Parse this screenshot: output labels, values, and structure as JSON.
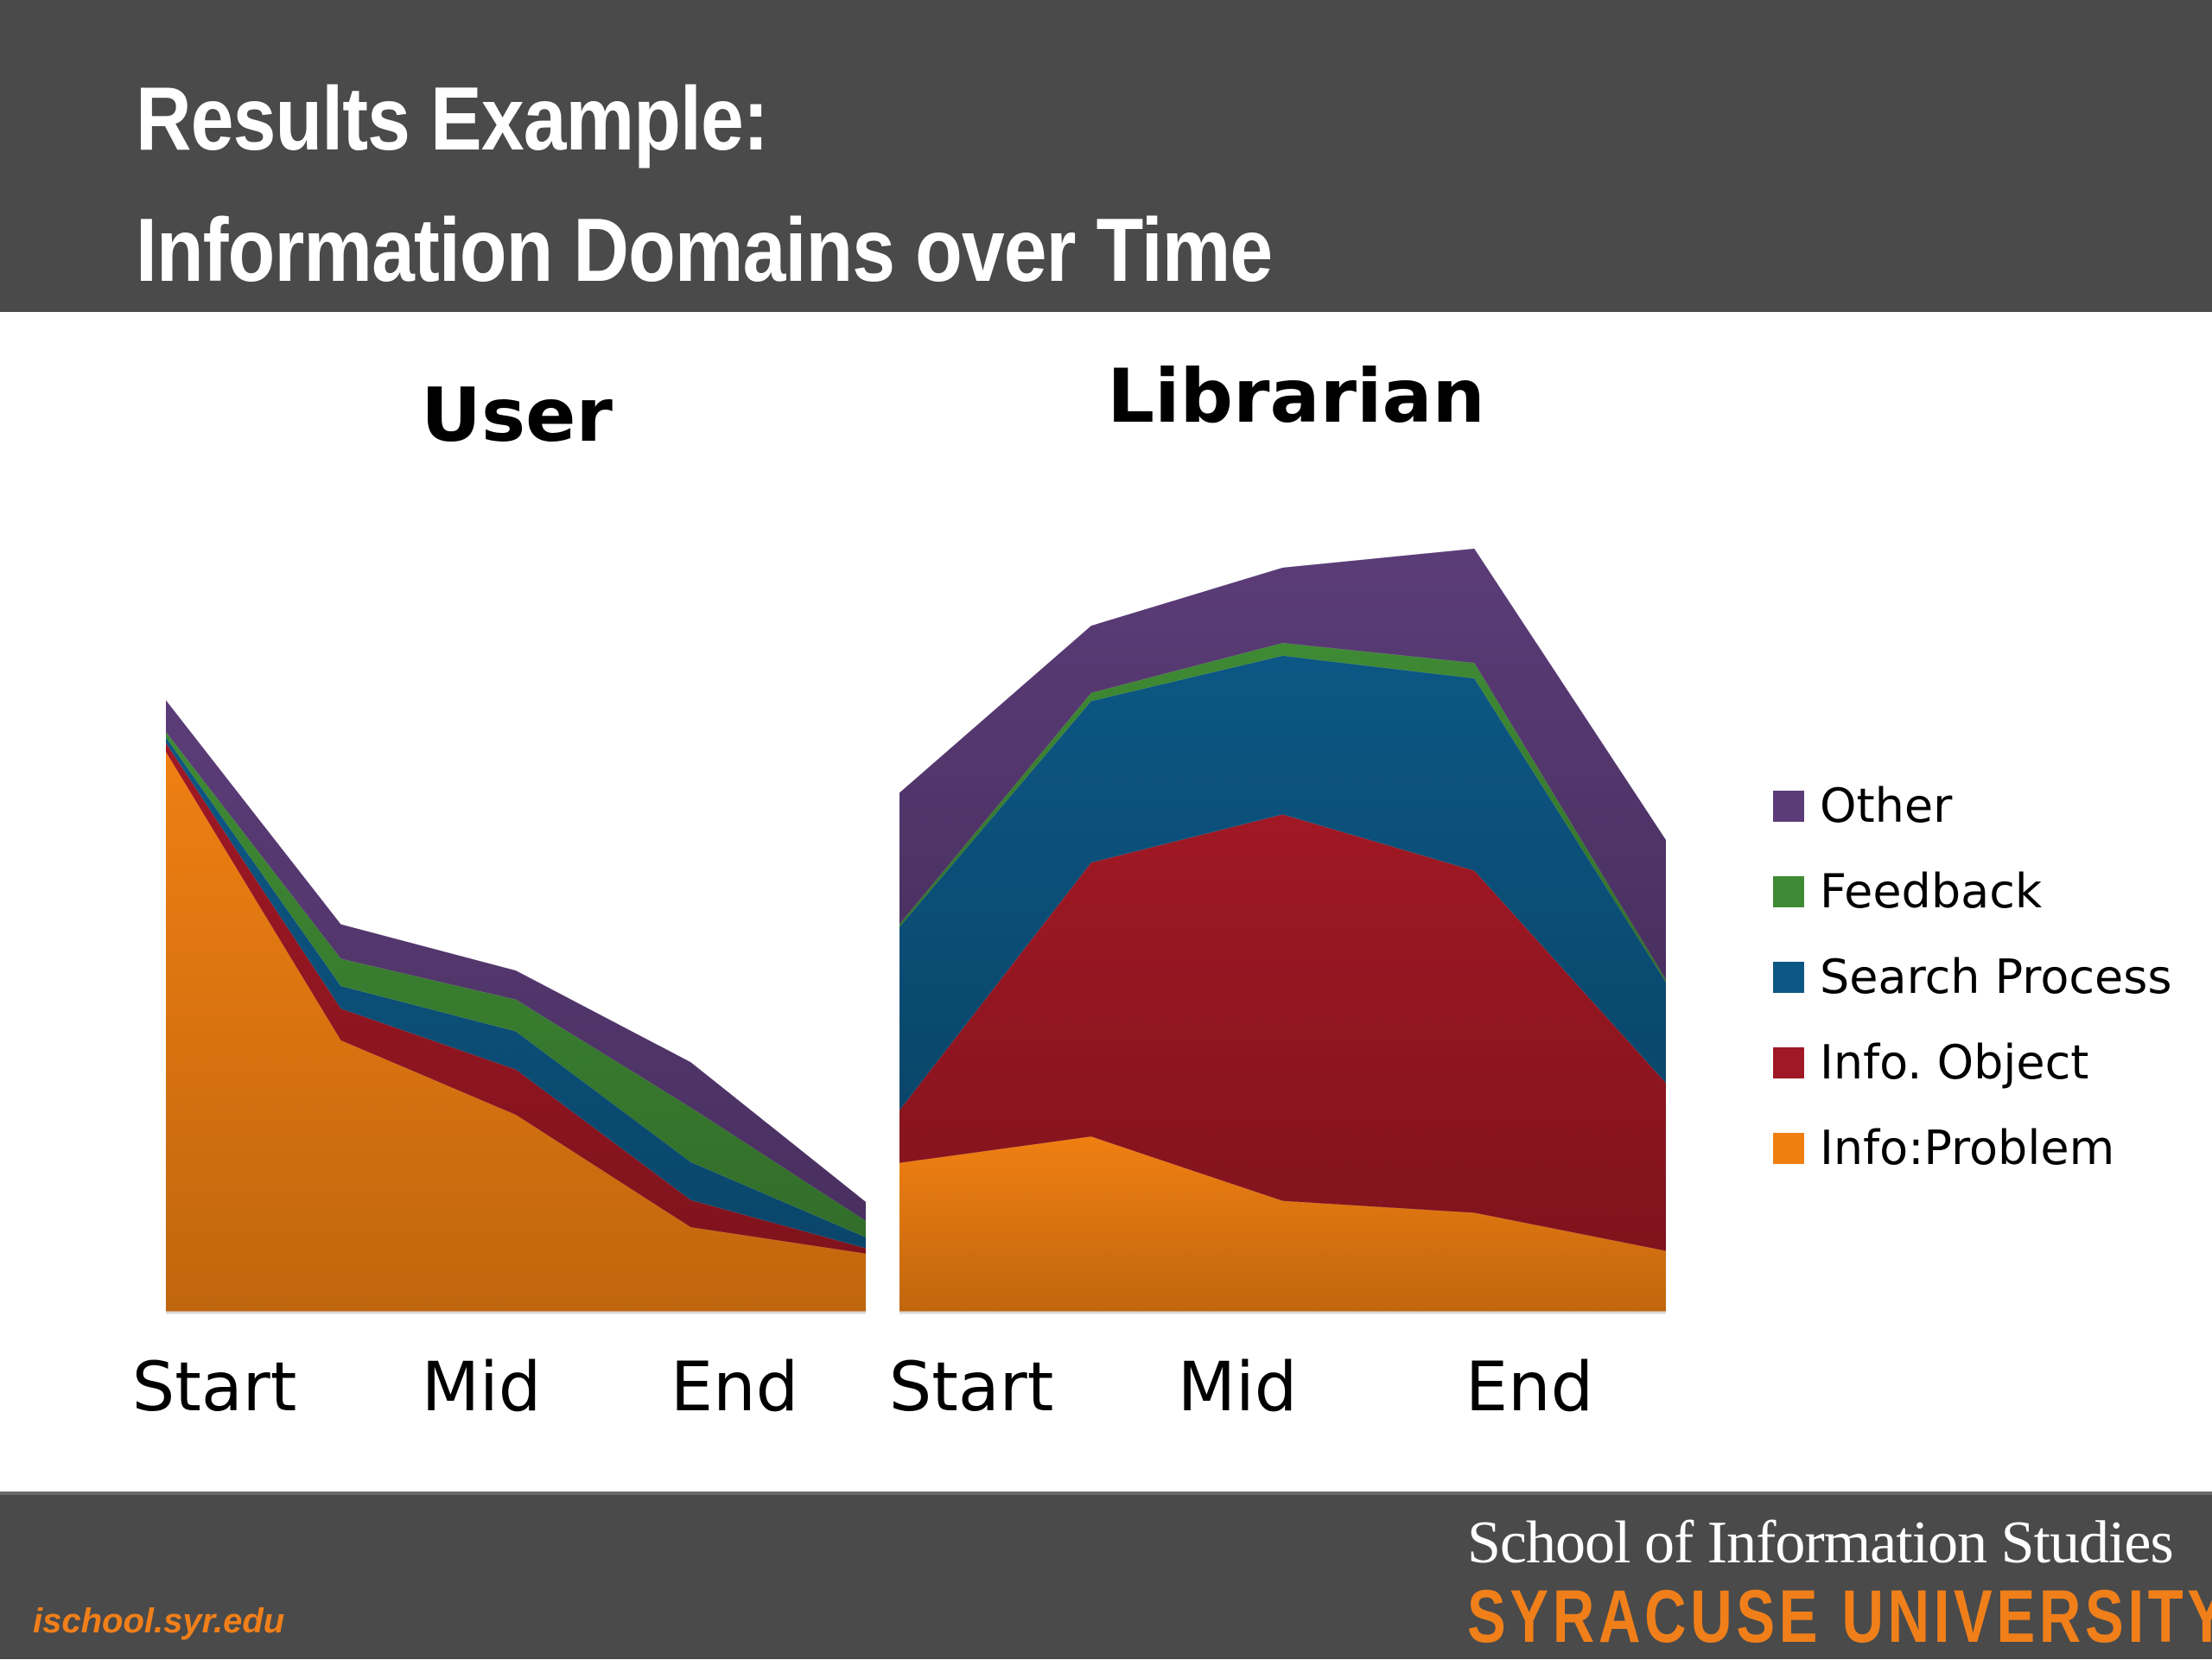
{
  "header": {
    "title_line_1": "Results Example:",
    "title_line_2": "Information Domains over Time"
  },
  "colors": {
    "header_bg": "#4a4a4a",
    "Other": "#5b3c78",
    "Feedback": "#3f8a34",
    "Search Process": "#0c5784",
    "Info. Object": "#a01824",
    "Info:Problem": "#f07f12",
    "brand_orange": "#f07f1a"
  },
  "chart_data": [
    {
      "type": "area",
      "stacked": true,
      "title": "User",
      "categories": [
        "Start",
        "",
        "Mid",
        "",
        "End"
      ],
      "x_tick_labels": [
        "Start",
        "Mid",
        "End"
      ],
      "ylim": [
        0,
        100
      ],
      "series": [
        {
          "name": "Info:Problem",
          "values": [
            61.8,
            30.0,
            21.8,
            9.4,
            6.5
          ]
        },
        {
          "name": "Info. Object",
          "values": [
            1.0,
            3.5,
            5.0,
            3.0,
            0.6
          ]
        },
        {
          "name": "Search Process",
          "values": [
            0.6,
            2.5,
            4.2,
            4.2,
            1.2
          ]
        },
        {
          "name": "Feedback",
          "values": [
            0.6,
            3.0,
            3.5,
            6.0,
            1.8
          ]
        },
        {
          "name": "Other",
          "values": [
            3.5,
            3.8,
            3.2,
            5.0,
            2.1
          ]
        }
      ]
    },
    {
      "type": "area",
      "stacked": true,
      "title": "Librarian",
      "categories": [
        "Start",
        "",
        "Mid",
        "",
        "End"
      ],
      "x_tick_labels": [
        "Start",
        "Mid",
        "End"
      ],
      "ylim": [
        0,
        100
      ],
      "series": [
        {
          "name": "Info:Problem",
          "values": [
            16.5,
            19.4,
            12.3,
            11.0,
            6.8
          ]
        },
        {
          "name": "Info. Object",
          "values": [
            5.8,
            30.2,
            42.6,
            37.7,
            18.5
          ]
        },
        {
          "name": "Search Process",
          "values": [
            20.2,
            17.8,
            17.5,
            21.2,
            11.1
          ]
        },
        {
          "name": "Feedback",
          "values": [
            0.3,
            0.9,
            1.4,
            1.7,
            0.3
          ]
        },
        {
          "name": "Other",
          "values": [
            14.5,
            7.4,
            8.3,
            12.6,
            15.4
          ]
        }
      ]
    }
  ],
  "legend": {
    "position": "right",
    "items": [
      "Other",
      "Feedback",
      "Search Process",
      "Info. Object",
      "Info:Problem"
    ]
  },
  "footer": {
    "url": "ischool.syr.edu",
    "school": "School of Information Studies",
    "university": "SYRACUSE UNIVERSITY"
  }
}
